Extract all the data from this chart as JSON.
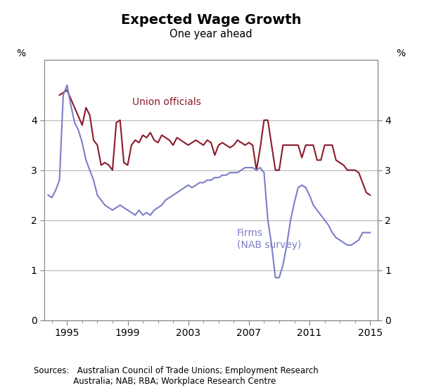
{
  "title": "Expected Wage Growth",
  "subtitle": "One year ahead",
  "ylabel_left": "%",
  "ylabel_right": "%",
  "source_text": "Sources:   Australian Council of Trade Unions; Employment Research\n               Australia; NAB; RBA; Workplace Research Centre",
  "xlim": [
    1993.5,
    2015.5
  ],
  "ylim": [
    0,
    5.2
  ],
  "yticks": [
    0,
    1,
    2,
    3,
    4
  ],
  "xticks": [
    1995,
    1999,
    2003,
    2007,
    2011,
    2015
  ],
  "union_color": "#8B1A2A",
  "firms_color": "#7B7EC8",
  "union_label": "Union officials",
  "firms_label": "Firms\n(NAB survey)",
  "union_data": [
    [
      1994.5,
      4.5
    ],
    [
      1995.0,
      4.6
    ],
    [
      1995.5,
      4.25
    ],
    [
      1996.0,
      3.9
    ],
    [
      1996.25,
      4.25
    ],
    [
      1996.5,
      4.1
    ],
    [
      1996.75,
      3.6
    ],
    [
      1997.0,
      3.5
    ],
    [
      1997.25,
      3.1
    ],
    [
      1997.5,
      3.15
    ],
    [
      1997.75,
      3.1
    ],
    [
      1998.0,
      3.0
    ],
    [
      1998.25,
      3.95
    ],
    [
      1998.5,
      4.0
    ],
    [
      1998.75,
      3.15
    ],
    [
      1999.0,
      3.1
    ],
    [
      1999.25,
      3.5
    ],
    [
      1999.5,
      3.6
    ],
    [
      1999.75,
      3.55
    ],
    [
      2000.0,
      3.7
    ],
    [
      2000.25,
      3.65
    ],
    [
      2000.5,
      3.75
    ],
    [
      2000.75,
      3.6
    ],
    [
      2001.0,
      3.55
    ],
    [
      2001.25,
      3.7
    ],
    [
      2001.5,
      3.65
    ],
    [
      2001.75,
      3.6
    ],
    [
      2002.0,
      3.5
    ],
    [
      2002.25,
      3.65
    ],
    [
      2002.5,
      3.6
    ],
    [
      2002.75,
      3.55
    ],
    [
      2003.0,
      3.5
    ],
    [
      2003.25,
      3.55
    ],
    [
      2003.5,
      3.6
    ],
    [
      2003.75,
      3.55
    ],
    [
      2004.0,
      3.5
    ],
    [
      2004.25,
      3.6
    ],
    [
      2004.5,
      3.55
    ],
    [
      2004.75,
      3.3
    ],
    [
      2005.0,
      3.5
    ],
    [
      2005.25,
      3.55
    ],
    [
      2005.5,
      3.5
    ],
    [
      2005.75,
      3.45
    ],
    [
      2006.0,
      3.5
    ],
    [
      2006.25,
      3.6
    ],
    [
      2006.5,
      3.55
    ],
    [
      2006.75,
      3.5
    ],
    [
      2007.0,
      3.55
    ],
    [
      2007.25,
      3.5
    ],
    [
      2007.5,
      3.0
    ],
    [
      2007.75,
      3.45
    ],
    [
      2008.0,
      4.0
    ],
    [
      2008.25,
      4.0
    ],
    [
      2008.5,
      3.5
    ],
    [
      2008.75,
      3.0
    ],
    [
      2009.0,
      3.0
    ],
    [
      2009.25,
      3.5
    ],
    [
      2009.5,
      3.5
    ],
    [
      2009.75,
      3.5
    ],
    [
      2010.0,
      3.5
    ],
    [
      2010.25,
      3.5
    ],
    [
      2010.5,
      3.25
    ],
    [
      2010.75,
      3.5
    ],
    [
      2011.0,
      3.5
    ],
    [
      2011.25,
      3.5
    ],
    [
      2011.5,
      3.2
    ],
    [
      2011.75,
      3.2
    ],
    [
      2012.0,
      3.5
    ],
    [
      2012.25,
      3.5
    ],
    [
      2012.5,
      3.5
    ],
    [
      2012.75,
      3.2
    ],
    [
      2013.0,
      3.15
    ],
    [
      2013.25,
      3.1
    ],
    [
      2013.5,
      3.0
    ],
    [
      2013.75,
      3.0
    ],
    [
      2014.0,
      3.0
    ],
    [
      2014.25,
      2.95
    ],
    [
      2014.5,
      2.75
    ],
    [
      2014.75,
      2.55
    ],
    [
      2015.0,
      2.5
    ]
  ],
  "firms_data": [
    [
      1993.75,
      2.5
    ],
    [
      1994.0,
      2.45
    ],
    [
      1994.25,
      2.6
    ],
    [
      1994.5,
      2.8
    ],
    [
      1994.75,
      4.5
    ],
    [
      1995.0,
      4.7
    ],
    [
      1995.25,
      4.3
    ],
    [
      1995.5,
      3.95
    ],
    [
      1995.75,
      3.8
    ],
    [
      1996.0,
      3.55
    ],
    [
      1996.25,
      3.2
    ],
    [
      1996.5,
      3.0
    ],
    [
      1996.75,
      2.8
    ],
    [
      1997.0,
      2.5
    ],
    [
      1997.25,
      2.4
    ],
    [
      1997.5,
      2.3
    ],
    [
      1997.75,
      2.25
    ],
    [
      1998.0,
      2.2
    ],
    [
      1998.25,
      2.25
    ],
    [
      1998.5,
      2.3
    ],
    [
      1998.75,
      2.25
    ],
    [
      1999.0,
      2.2
    ],
    [
      1999.25,
      2.15
    ],
    [
      1999.5,
      2.1
    ],
    [
      1999.75,
      2.2
    ],
    [
      2000.0,
      2.1
    ],
    [
      2000.25,
      2.15
    ],
    [
      2000.5,
      2.1
    ],
    [
      2000.75,
      2.2
    ],
    [
      2001.0,
      2.25
    ],
    [
      2001.25,
      2.3
    ],
    [
      2001.5,
      2.4
    ],
    [
      2001.75,
      2.45
    ],
    [
      2002.0,
      2.5
    ],
    [
      2002.25,
      2.55
    ],
    [
      2002.5,
      2.6
    ],
    [
      2002.75,
      2.65
    ],
    [
      2003.0,
      2.7
    ],
    [
      2003.25,
      2.65
    ],
    [
      2003.5,
      2.7
    ],
    [
      2003.75,
      2.75
    ],
    [
      2004.0,
      2.75
    ],
    [
      2004.25,
      2.8
    ],
    [
      2004.5,
      2.8
    ],
    [
      2004.75,
      2.85
    ],
    [
      2005.0,
      2.85
    ],
    [
      2005.25,
      2.9
    ],
    [
      2005.5,
      2.9
    ],
    [
      2005.75,
      2.95
    ],
    [
      2006.0,
      2.95
    ],
    [
      2006.25,
      2.95
    ],
    [
      2006.5,
      3.0
    ],
    [
      2006.75,
      3.05
    ],
    [
      2007.0,
      3.05
    ],
    [
      2007.25,
      3.05
    ],
    [
      2007.5,
      3.0
    ],
    [
      2007.75,
      3.05
    ],
    [
      2008.0,
      2.95
    ],
    [
      2008.25,
      2.0
    ],
    [
      2008.5,
      1.5
    ],
    [
      2008.75,
      0.85
    ],
    [
      2009.0,
      0.85
    ],
    [
      2009.25,
      1.1
    ],
    [
      2009.5,
      1.5
    ],
    [
      2009.75,
      2.0
    ],
    [
      2010.0,
      2.35
    ],
    [
      2010.25,
      2.65
    ],
    [
      2010.5,
      2.7
    ],
    [
      2010.75,
      2.65
    ],
    [
      2011.0,
      2.5
    ],
    [
      2011.25,
      2.3
    ],
    [
      2011.5,
      2.2
    ],
    [
      2011.75,
      2.1
    ],
    [
      2012.0,
      2.0
    ],
    [
      2012.25,
      1.9
    ],
    [
      2012.5,
      1.75
    ],
    [
      2012.75,
      1.65
    ],
    [
      2013.0,
      1.6
    ],
    [
      2013.25,
      1.55
    ],
    [
      2013.5,
      1.5
    ],
    [
      2013.75,
      1.5
    ],
    [
      2014.0,
      1.55
    ],
    [
      2014.25,
      1.6
    ],
    [
      2014.5,
      1.75
    ],
    [
      2014.75,
      1.75
    ],
    [
      2015.0,
      1.75
    ]
  ]
}
